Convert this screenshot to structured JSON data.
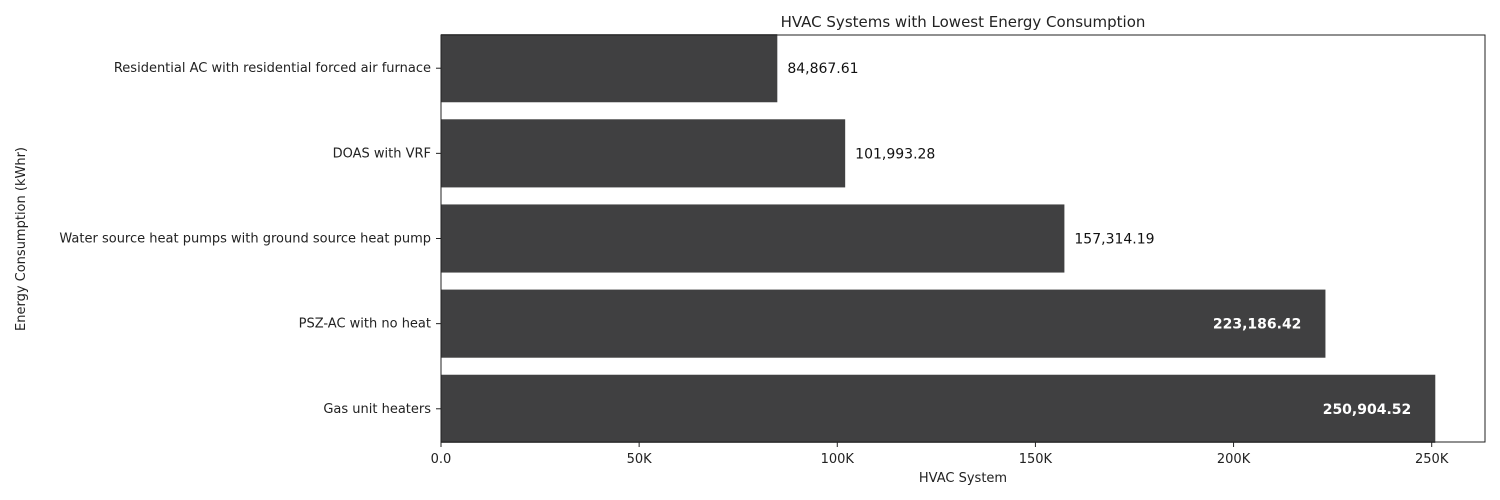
{
  "chart_data": {
    "type": "bar",
    "orientation": "horizontal",
    "title": "HVAC Systems with Lowest Energy Consumption",
    "xlabel": "HVAC System",
    "ylabel": "Energy Consumption (kWhr)",
    "categories": [
      "Residential AC with residential forced air furnace",
      "DOAS with VRF",
      "Water source heat pumps with ground source heat pump",
      "PSZ-AC with no heat",
      "Gas unit heaters"
    ],
    "values": [
      84867.61,
      101993.28,
      157314.19,
      223186.42,
      250904.52
    ],
    "value_labels": [
      "84,867.61",
      "101,993.28",
      "157,314.19",
      "223,186.42",
      "250,904.52"
    ],
    "xlim": [
      0,
      263450
    ],
    "x_ticks": [
      0,
      50000,
      100000,
      150000,
      200000,
      250000
    ],
    "x_tick_labels": [
      "0.0",
      "50K",
      "100K",
      "150K",
      "200K",
      "250K"
    ],
    "grid": false,
    "legend": "none",
    "bar_color": "#404041",
    "label_color_outside": "#111111",
    "label_color_inside": "#ffffff"
  }
}
